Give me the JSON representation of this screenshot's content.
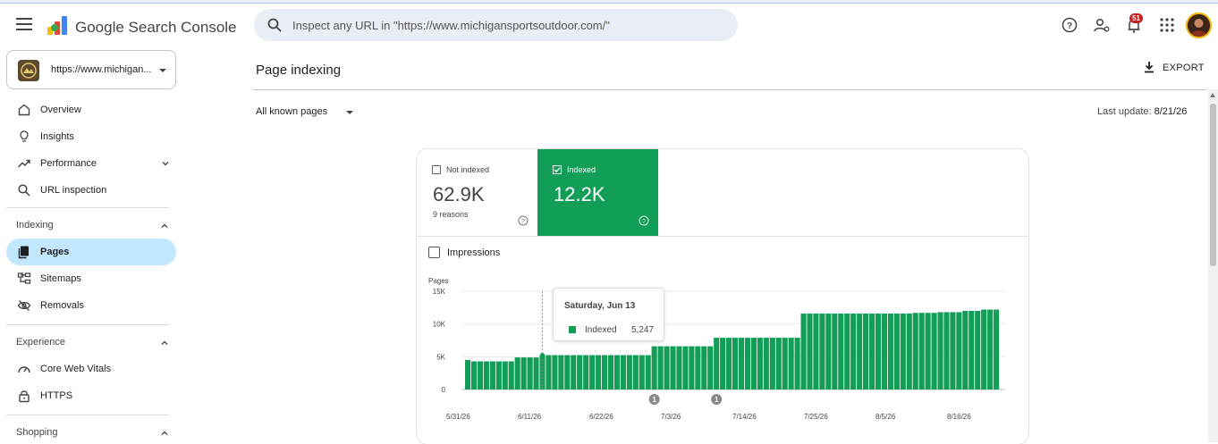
{
  "header": {
    "brand": "Google Search Console",
    "search_placeholder": "Inspect any URL in \"https://www.michigansportsoutdoor.com/\"",
    "notification_count": "51"
  },
  "sidebar": {
    "property_label": "https://www.michigan...",
    "top_items": [
      {
        "label": "Overview"
      },
      {
        "label": "Insights"
      },
      {
        "label": "Performance"
      },
      {
        "label": "URL inspection"
      }
    ],
    "indexing": {
      "title": "Indexing",
      "items": [
        {
          "label": "Pages"
        },
        {
          "label": "Sitemaps"
        },
        {
          "label": "Removals"
        }
      ]
    },
    "experience": {
      "title": "Experience",
      "items": [
        {
          "label": "Core Web Vitals"
        },
        {
          "label": "HTTPS"
        }
      ]
    },
    "shopping": {
      "title": "Shopping"
    }
  },
  "main": {
    "title": "Page indexing",
    "export_label": "EXPORT",
    "filter_label": "All known pages",
    "last_update_label": "Last update:",
    "last_update_value": "8/21/26"
  },
  "summary": {
    "not_indexed": {
      "label": "Not indexed",
      "value": "62.9K",
      "sub": "9 reasons"
    },
    "indexed": {
      "label": "Indexed",
      "value": "12.2K"
    },
    "impressions_label": "Impressions"
  },
  "tooltip": {
    "date": "Saturday, Jun 13",
    "series": "Indexed",
    "value": "5,247"
  },
  "chart_data": {
    "type": "bar",
    "ylabel": "Pages",
    "ylim": [
      0,
      15000
    ],
    "yticks": [
      "0",
      "5K",
      "10K",
      "15K"
    ],
    "xticks": [
      "5/31/26",
      "6/11/26",
      "6/22/26",
      "7/3/26",
      "7/14/26",
      "7/25/26",
      "8/5/26",
      "8/16/26"
    ],
    "annotations": [
      {
        "label": "1",
        "index": 30
      },
      {
        "label": "1",
        "index": 40
      }
    ],
    "highlight_index": 12,
    "series": [
      {
        "name": "Indexed",
        "color": "#129e57",
        "values": [
          4500,
          4300,
          4300,
          4300,
          4300,
          4300,
          4300,
          4300,
          4900,
          4900,
          4900,
          4900,
          5247,
          5247,
          5247,
          5247,
          5247,
          5247,
          5247,
          5247,
          5247,
          5247,
          5247,
          5247,
          5247,
          5247,
          5247,
          5247,
          5247,
          5247,
          6600,
          6600,
          6600,
          6600,
          6600,
          6600,
          6600,
          6600,
          6600,
          6600,
          7900,
          7900,
          7900,
          7900,
          7900,
          7900,
          7900,
          7900,
          7900,
          7900,
          7900,
          7900,
          7900,
          7900,
          11600,
          11600,
          11600,
          11600,
          11600,
          11600,
          11600,
          11600,
          11600,
          11600,
          11600,
          11600,
          11600,
          11600,
          11600,
          11600,
          11600,
          11600,
          11700,
          11700,
          11700,
          11700,
          11800,
          11800,
          11800,
          11800,
          12000,
          12000,
          12000,
          12200,
          12200,
          12200
        ]
      }
    ]
  }
}
